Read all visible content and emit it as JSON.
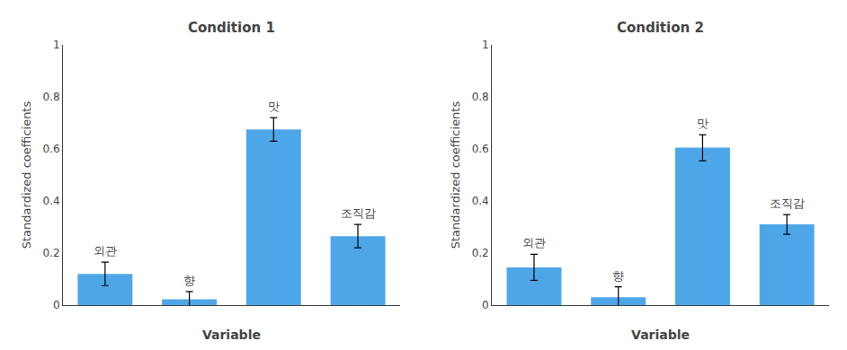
{
  "chart_data": [
    {
      "type": "bar",
      "title": "Condition 1",
      "categories": [
        "외관",
        "향",
        "맛",
        "조직감"
      ],
      "values": [
        0.12,
        0.022,
        0.675,
        0.265
      ],
      "errors": [
        0.045,
        0.03,
        0.045,
        0.045
      ],
      "color": "#4da6e8",
      "xlabel": "Variable",
      "ylabel": "Standardized coefficients",
      "ylim": [
        0,
        1
      ],
      "yticks": [
        0,
        0.2,
        0.4,
        0.6,
        0.8,
        1
      ],
      "grid": false,
      "tick_labels": "y"
    },
    {
      "type": "bar",
      "title": "Condition 2",
      "categories": [
        "외관",
        "향",
        "맛",
        "조직감"
      ],
      "values": [
        0.145,
        0.03,
        0.605,
        0.31
      ],
      "errors": [
        0.05,
        0.04,
        0.05,
        0.038
      ],
      "color": "#4da6e8",
      "xlabel": "Variable",
      "ylabel": "Standardized coefficients",
      "ylim": [
        0,
        1
      ],
      "yticks": [
        0,
        0.2,
        0.4,
        0.6,
        0.8,
        1
      ],
      "grid": false,
      "tick_labels": "y"
    }
  ]
}
